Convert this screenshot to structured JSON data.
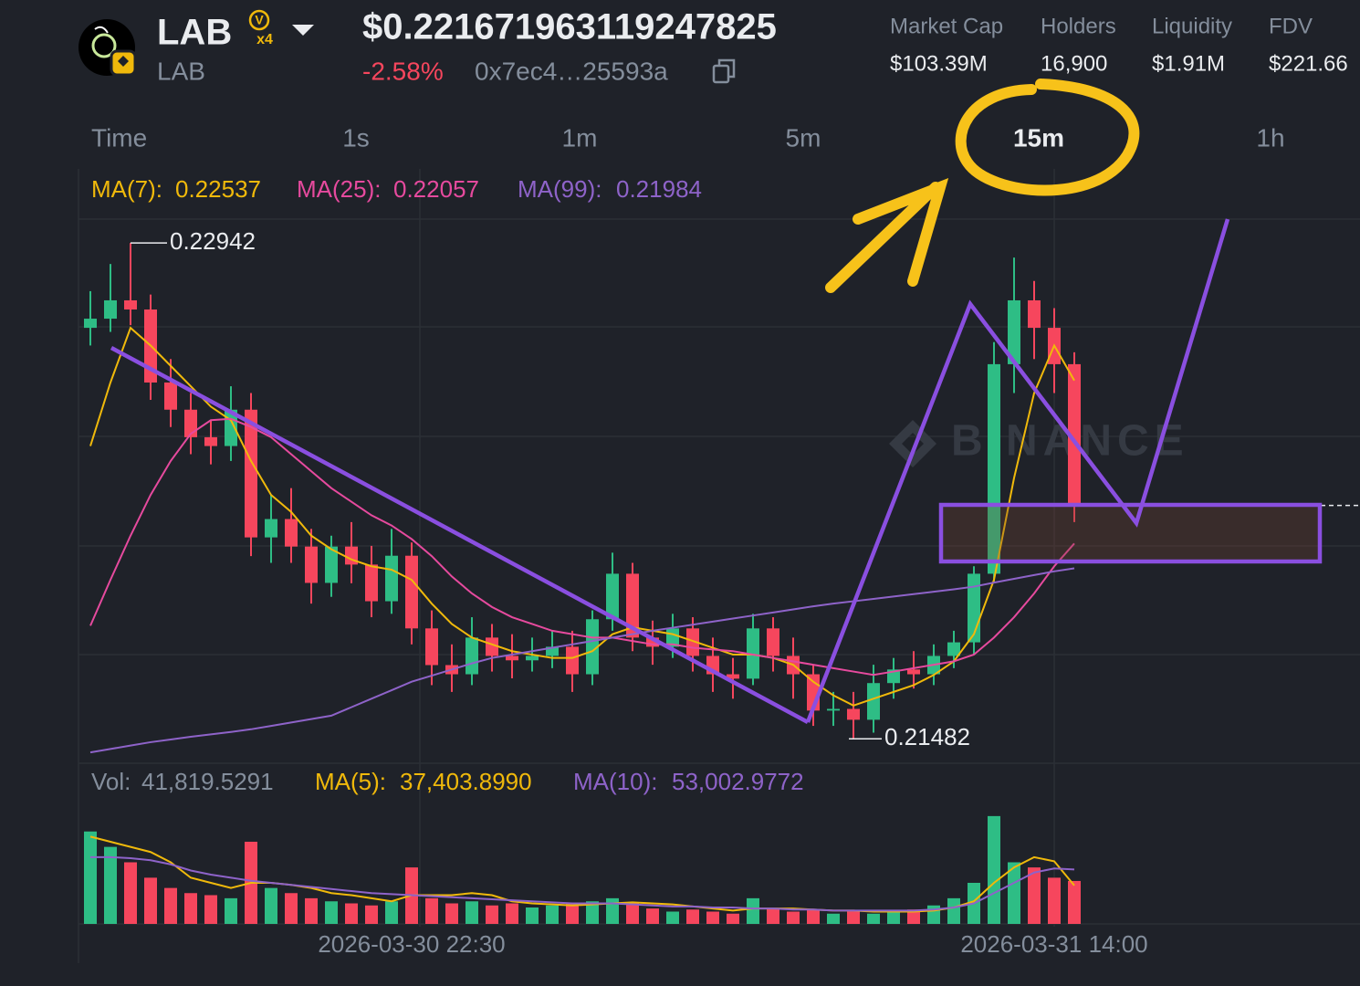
{
  "header": {
    "symbol": "LAB",
    "badge_letter": "V",
    "badge_multiplier": "x4",
    "subtitle": "LAB",
    "price": "$0.221671963119247825",
    "change": "-2.58%",
    "address": "0x7ec4…25593a"
  },
  "stats": [
    {
      "label": "Market Cap",
      "value": "$103.39M"
    },
    {
      "label": "Holders",
      "value": "16,900"
    },
    {
      "label": "Liquidity",
      "value": "$1.91M"
    },
    {
      "label": "FDV",
      "value": "$221.66"
    }
  ],
  "timeframes": [
    "Time",
    "1s",
    "1m",
    "5m",
    "15m",
    "1h"
  ],
  "active_timeframe_index": 4,
  "chart_data": {
    "type": "candlestick",
    "watermark": "BINANCE",
    "up_color": "#2ebd85",
    "down_color": "#f6465d",
    "categories": [
      null,
      null,
      null,
      null,
      null,
      null,
      null,
      null,
      null,
      null,
      null,
      null,
      null,
      null,
      null,
      null,
      "2026-03-30 22:30",
      null,
      null,
      null,
      null,
      null,
      null,
      null,
      null,
      null,
      null,
      null,
      null,
      null,
      null,
      null,
      null,
      null,
      null,
      null,
      null,
      null,
      null,
      null,
      null,
      null,
      null,
      null,
      null,
      null,
      null,
      null,
      "2026-03-31 14:00",
      null
    ],
    "open": [
      0.22692,
      0.22719,
      0.22773,
      0.22746,
      0.22531,
      0.22451,
      0.2237,
      0.22344,
      0.22451,
      0.22075,
      0.22129,
      0.22048,
      0.21941,
      0.22048,
      0.21995,
      0.21887,
      0.22021,
      0.21807,
      0.21699,
      0.21672,
      0.2178,
      0.21726,
      0.21713,
      0.21726,
      0.21753,
      0.21672,
      0.21834,
      0.21968,
      0.2178,
      0.21753,
      0.21807,
      0.21726,
      0.21672,
      0.21659,
      0.21807,
      0.21726,
      0.21672,
      0.21565,
      0.2157,
      0.21538,
      0.21646,
      0.21686,
      0.21672,
      0.21726,
      0.21766,
      0.21968,
      0.22585,
      0.22773,
      0.22692,
      0.22585
    ],
    "high": [
      0.228,
      0.2288,
      0.22942,
      0.2279,
      0.226,
      0.225,
      0.2242,
      0.2252,
      0.225,
      0.222,
      0.2222,
      0.221,
      0.2208,
      0.2212,
      0.2205,
      0.221,
      0.2206,
      0.2186,
      0.2176,
      0.2184,
      0.2182,
      0.2179,
      0.2178,
      0.218,
      0.218,
      0.2186,
      0.2203,
      0.22,
      0.2183,
      0.2185,
      0.2184,
      0.2178,
      0.2172,
      0.2185,
      0.2184,
      0.2178,
      0.217,
      0.2162,
      0.2162,
      0.217,
      0.2172,
      0.2174,
      0.2176,
      0.218,
      0.2199,
      0.2265,
      0.22899,
      0.2283,
      0.2275,
      0.2262
    ],
    "low": [
      0.2264,
      0.2268,
      0.227,
      0.2248,
      0.224,
      0.2232,
      0.2229,
      0.223,
      0.2202,
      0.22,
      0.22,
      0.2188,
      0.219,
      0.2194,
      0.2184,
      0.2185,
      0.2176,
      0.2164,
      0.2162,
      0.2164,
      0.2168,
      0.2166,
      0.2168,
      0.2169,
      0.2162,
      0.2164,
      0.218,
      0.2174,
      0.217,
      0.2172,
      0.2168,
      0.2162,
      0.216,
      0.2164,
      0.2168,
      0.216,
      0.2152,
      0.2152,
      0.21482,
      0.215,
      0.216,
      0.2163,
      0.2164,
      0.2169,
      0.2173,
      0.2194,
      0.225,
      0.226,
      0.225,
      0.2212
    ],
    "close": [
      0.22719,
      0.22773,
      0.22746,
      0.22531,
      0.22451,
      0.2237,
      0.22344,
      0.22451,
      0.22075,
      0.22129,
      0.22048,
      0.21941,
      0.22048,
      0.21995,
      0.21887,
      0.22021,
      0.21807,
      0.21699,
      0.21672,
      0.2178,
      0.21726,
      0.21713,
      0.21726,
      0.21753,
      0.21672,
      0.21834,
      0.21968,
      0.2178,
      0.21753,
      0.21807,
      0.21726,
      0.21672,
      0.21659,
      0.21807,
      0.21726,
      0.21672,
      0.21565,
      0.2157,
      0.21538,
      0.21646,
      0.21686,
      0.21672,
      0.21726,
      0.21766,
      0.21968,
      0.22585,
      0.22773,
      0.22692,
      0.22585,
      0.22169
    ],
    "ylim": [
      0.2141,
      0.2316
    ],
    "last_price_line": 0.22169,
    "ma_lines": [
      {
        "name": "MA(7):",
        "color": "#f0b90b",
        "values": [
          0.22344,
          0.22531,
          0.22692,
          0.2264,
          0.2258,
          0.2252,
          0.2246,
          0.2242,
          0.223,
          0.222,
          0.2215,
          0.2208,
          0.2204,
          0.2201,
          0.2199,
          0.2198,
          0.2195,
          0.2188,
          0.2182,
          0.2178,
          0.2176,
          0.2174,
          0.2173,
          0.2172,
          0.2172,
          0.2174,
          0.2179,
          0.2181,
          0.218,
          0.2179,
          0.2177,
          0.2175,
          0.2173,
          0.2173,
          0.2172,
          0.217,
          0.2165,
          0.2161,
          0.2158,
          0.216,
          0.2162,
          0.2164,
          0.2167,
          0.2171,
          0.2179,
          0.2195,
          0.2225,
          0.225,
          0.2264,
          0.22537
        ]
      },
      {
        "name": "MA(25):",
        "color": "#e64a9e",
        "values": [
          0.21815,
          0.2195,
          0.2208,
          0.222,
          0.223,
          0.2238,
          0.2242,
          0.22424,
          0.224,
          0.2237,
          0.2232,
          0.2227,
          0.2222,
          0.2218,
          0.2214,
          0.2211,
          0.2207,
          0.2202,
          0.2196,
          0.2191,
          0.2187,
          0.2184,
          0.2182,
          0.218,
          0.2179,
          0.2178,
          0.2178,
          0.2177,
          0.2176,
          0.2176,
          0.2175,
          0.21745,
          0.2174,
          0.2173,
          0.2172,
          0.2171,
          0.217,
          0.2169,
          0.2168,
          0.2167,
          0.2168,
          0.2169,
          0.217,
          0.2171,
          0.2173,
          0.2178,
          0.2184,
          0.2191,
          0.2199,
          0.22057
        ]
      },
      {
        "name": "MA(99):",
        "color": "#8e63c9",
        "values": [
          0.21442,
          0.21452,
          0.21462,
          0.21472,
          0.2148,
          0.21488,
          0.21495,
          0.21502,
          0.2151,
          0.2152,
          0.2153,
          0.2154,
          0.2155,
          0.21575,
          0.216,
          0.21625,
          0.2165,
          0.21668,
          0.21686,
          0.21704,
          0.2172,
          0.2173,
          0.2174,
          0.2175,
          0.2176,
          0.2177,
          0.2178,
          0.2179,
          0.218,
          0.21809,
          0.21818,
          0.21827,
          0.21836,
          0.21845,
          0.21854,
          0.21863,
          0.21872,
          0.2188,
          0.21887,
          0.21894,
          0.21901,
          0.21908,
          0.21915,
          0.21922,
          0.2193,
          0.21942,
          0.21953,
          0.21964,
          0.21975,
          0.21984
        ]
      }
    ],
    "volume": {
      "name": "Vol:",
      "last_label": "41,819.5291",
      "ylim": [
        0,
        120000
      ],
      "values": [
        90000,
        75000,
        60000,
        45000,
        35000,
        30000,
        28000,
        25000,
        80000,
        35000,
        30000,
        25000,
        22000,
        20000,
        18000,
        22000,
        55000,
        25000,
        20000,
        22000,
        18000,
        20000,
        16000,
        18000,
        20000,
        22000,
        25000,
        20000,
        15000,
        12000,
        14000,
        12000,
        10000,
        25000,
        15000,
        12000,
        14000,
        10000,
        12000,
        10000,
        12000,
        14000,
        18000,
        25000,
        40000,
        105000,
        60000,
        55000,
        45000,
        41819.5291
      ]
    },
    "volume_ma_lines": [
      {
        "name": "MA(5):",
        "color": "#f0b90b",
        "last_label": "37,403.8990",
        "values": [
          85000,
          80000,
          75000,
          70000,
          60000,
          45000,
          40000,
          35000,
          40000,
          40000,
          38000,
          35000,
          30000,
          28000,
          25000,
          22000,
          28000,
          28000,
          28000,
          30000,
          28000,
          22000,
          20000,
          19000,
          18000,
          19000,
          20000,
          21000,
          20000,
          19000,
          17000,
          15000,
          13000,
          15000,
          15000,
          15000,
          14000,
          13000,
          13000,
          12000,
          12000,
          12000,
          13000,
          16000,
          22000,
          40000,
          55000,
          65000,
          61000,
          37403.899
        ]
      },
      {
        "name": "MA(10):",
        "color": "#8e63c9",
        "last_label": "53,002.9772",
        "values": [
          65000,
          65000,
          64000,
          62000,
          58000,
          52000,
          48000,
          45000,
          42000,
          40000,
          38000,
          36000,
          34000,
          32000,
          30000,
          29000,
          28000,
          27000,
          26000,
          25000,
          24000,
          23000,
          22000,
          21000,
          20000,
          20000,
          20000,
          19000,
          18000,
          17000,
          17000,
          16000,
          16000,
          15000,
          15000,
          14000,
          14000,
          13000,
          13000,
          13000,
          13000,
          13000,
          14000,
          16000,
          20000,
          30000,
          40000,
          50000,
          54000,
          53002.9772
        ]
      }
    ]
  }
}
